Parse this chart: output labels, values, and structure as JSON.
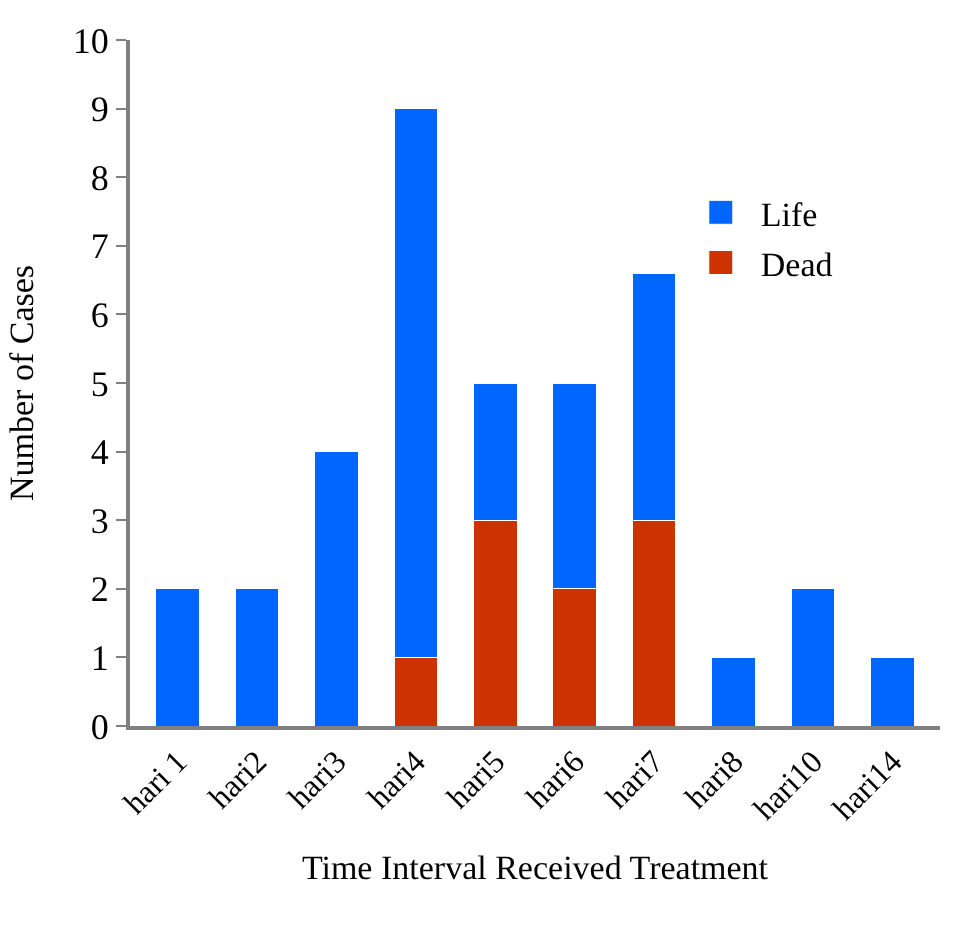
{
  "chart_data": {
    "type": "bar",
    "stacked": true,
    "xlabel": "Time Interval Received Treatment",
    "ylabel": "Number of Cases",
    "categories": [
      "hari 1",
      "hari2",
      "hari3",
      "hari4",
      "hari5",
      "hari6",
      "hari7",
      "hari8",
      "hari10",
      "hari14"
    ],
    "series": [
      {
        "name": "Dead",
        "color": "#cc3300",
        "values": [
          null,
          null,
          null,
          1,
          3,
          2,
          3,
          null,
          null,
          null
        ]
      },
      {
        "name": "Life",
        "color": "#0066ff",
        "values": [
          2,
          2,
          4,
          8,
          2,
          3,
          3.6,
          1,
          2,
          1
        ]
      }
    ],
    "ylim": [
      0,
      10
    ],
    "yticks": [
      0,
      1,
      2,
      3,
      4,
      5,
      6,
      7,
      8,
      9,
      10
    ],
    "legend": "top right"
  }
}
